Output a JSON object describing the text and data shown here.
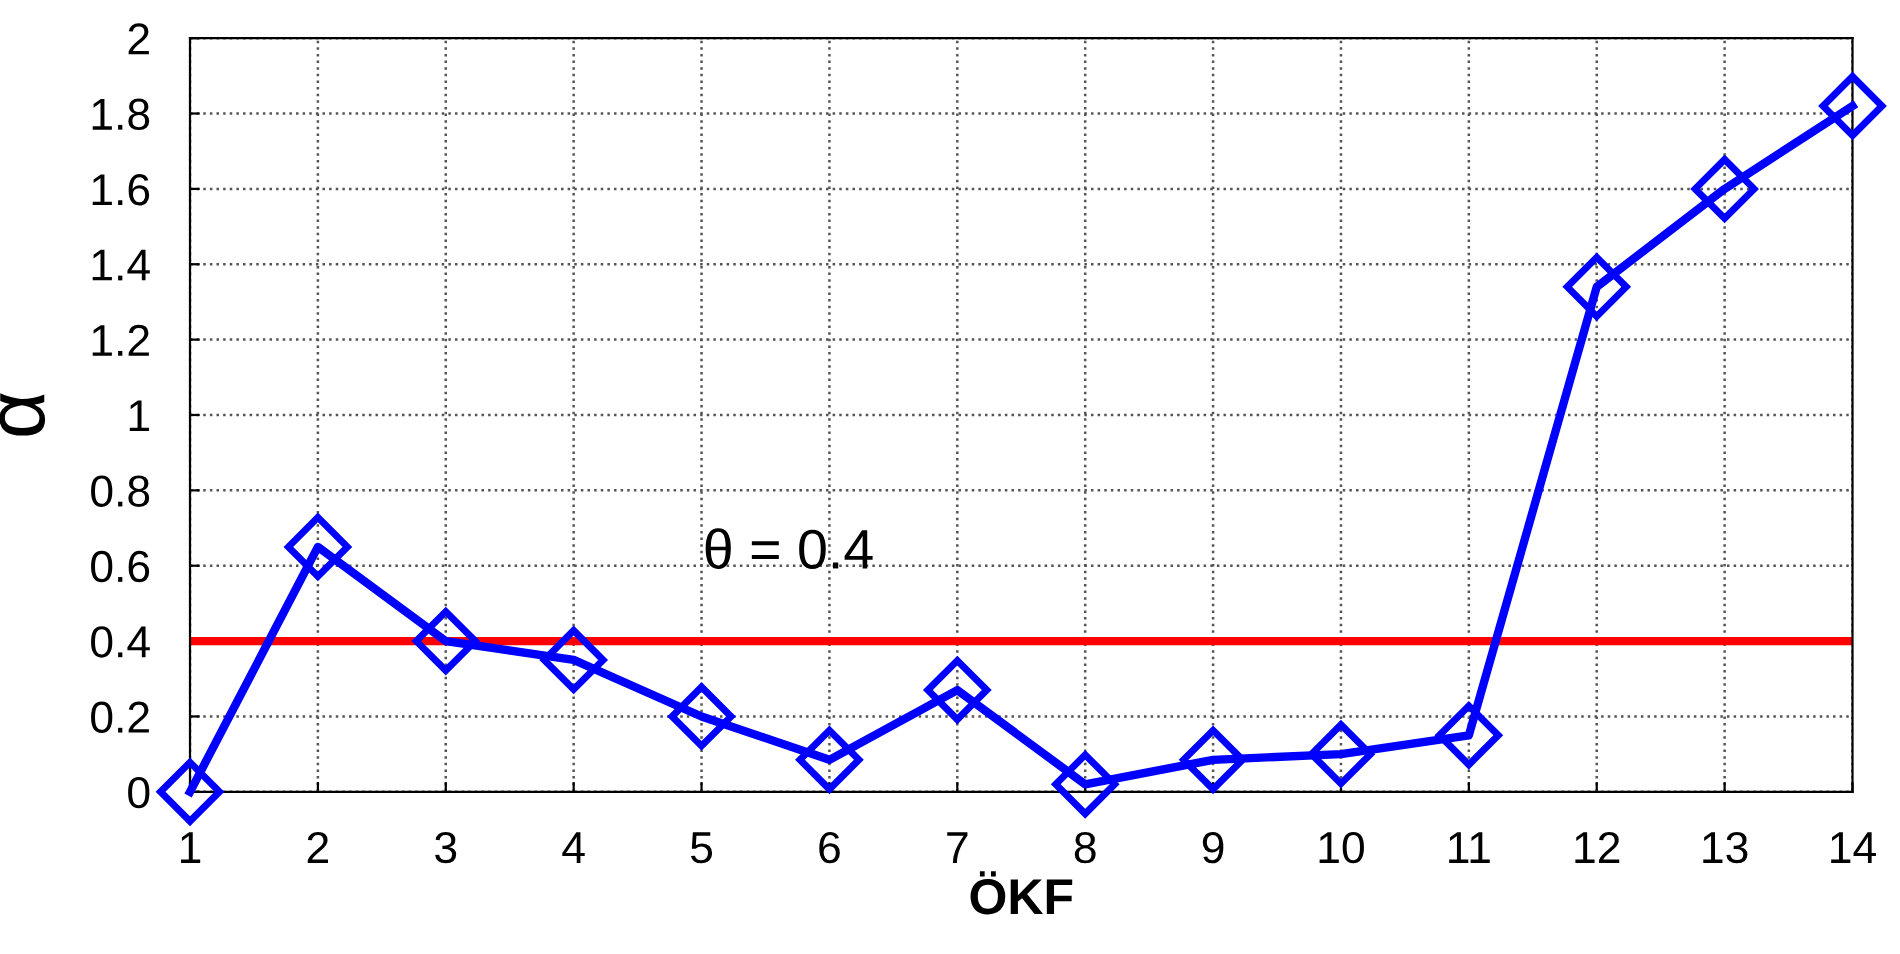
{
  "chart_data": {
    "type": "line",
    "xlabel": "ÖKF",
    "ylabel": "α",
    "x": [
      1,
      2,
      3,
      4,
      5,
      6,
      7,
      8,
      9,
      10,
      11,
      12,
      13,
      14
    ],
    "series": [
      {
        "color": "#0000ff",
        "values": [
          0.0,
          0.65,
          0.4,
          0.35,
          0.2,
          0.085,
          0.27,
          0.02,
          0.085,
          0.1,
          0.15,
          1.34,
          1.6,
          1.82
        ]
      }
    ],
    "xlim": [
      1,
      14
    ],
    "ylim": [
      0,
      2
    ],
    "xticks": [
      1,
      2,
      3,
      4,
      5,
      6,
      7,
      8,
      9,
      10,
      11,
      12,
      13,
      14
    ],
    "yticks": [
      0,
      0.2,
      0.4,
      0.6,
      0.8,
      1,
      1.2,
      1.4,
      1.6,
      1.8,
      2
    ],
    "ref_lines": [
      {
        "axis": "y",
        "value": 0.4,
        "label": "θ = 0.4",
        "color": "#ff0000"
      }
    ],
    "grid": true,
    "marker": "diamond",
    "line_style": "solid"
  }
}
